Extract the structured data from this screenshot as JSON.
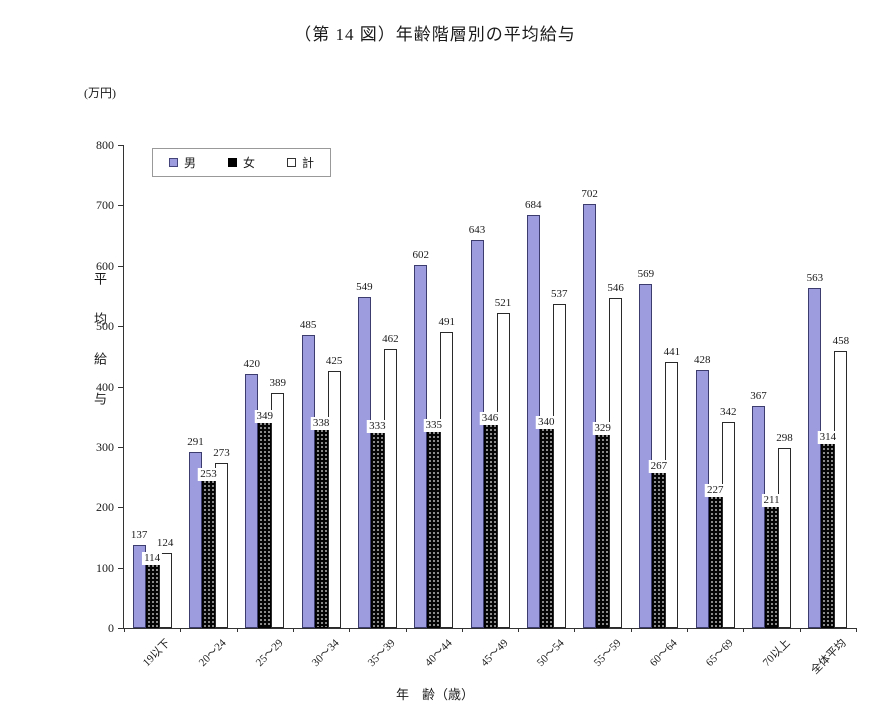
{
  "title": "（第 14 図）年齢階層別の平均給与",
  "y_axis_unit": "(万円)",
  "y_axis_label": "平均給与",
  "x_axis_label": "年　齢（歳）",
  "legend": [
    {
      "label": "男",
      "color": "#9c9cdf",
      "pattern": "solid"
    },
    {
      "label": "女",
      "color": "#000000",
      "pattern": "dots"
    },
    {
      "label": "計",
      "color": "#ffffff",
      "pattern": "outline"
    }
  ],
  "chart_data": {
    "type": "bar",
    "title": "（第 14 図）年齢階層別の平均給与",
    "categories": [
      "19以下",
      "20～24",
      "25～29",
      "30～34",
      "35～39",
      "40～44",
      "45～49",
      "50～54",
      "55～59",
      "60～64",
      "65～69",
      "70以上",
      "全体平均"
    ],
    "series": [
      {
        "name": "男",
        "values": [
          137,
          291,
          420,
          485,
          549,
          602,
          643,
          684,
          702,
          569,
          428,
          367,
          563
        ]
      },
      {
        "name": "女",
        "values": [
          114,
          253,
          349,
          338,
          333,
          335,
          346,
          340,
          329,
          267,
          227,
          211,
          314
        ]
      },
      {
        "name": "計",
        "values": [
          124,
          273,
          389,
          425,
          462,
          491,
          521,
          537,
          546,
          441,
          342,
          298,
          458
        ]
      }
    ],
    "xlabel": "年　齢（歳）",
    "ylabel": "平均給与",
    "unit": "万円",
    "ylim": [
      0,
      800
    ],
    "y_ticks": [
      0,
      100,
      200,
      300,
      400,
      500,
      600,
      700,
      800
    ],
    "grid": false,
    "legend_position": "top-left-inside"
  }
}
